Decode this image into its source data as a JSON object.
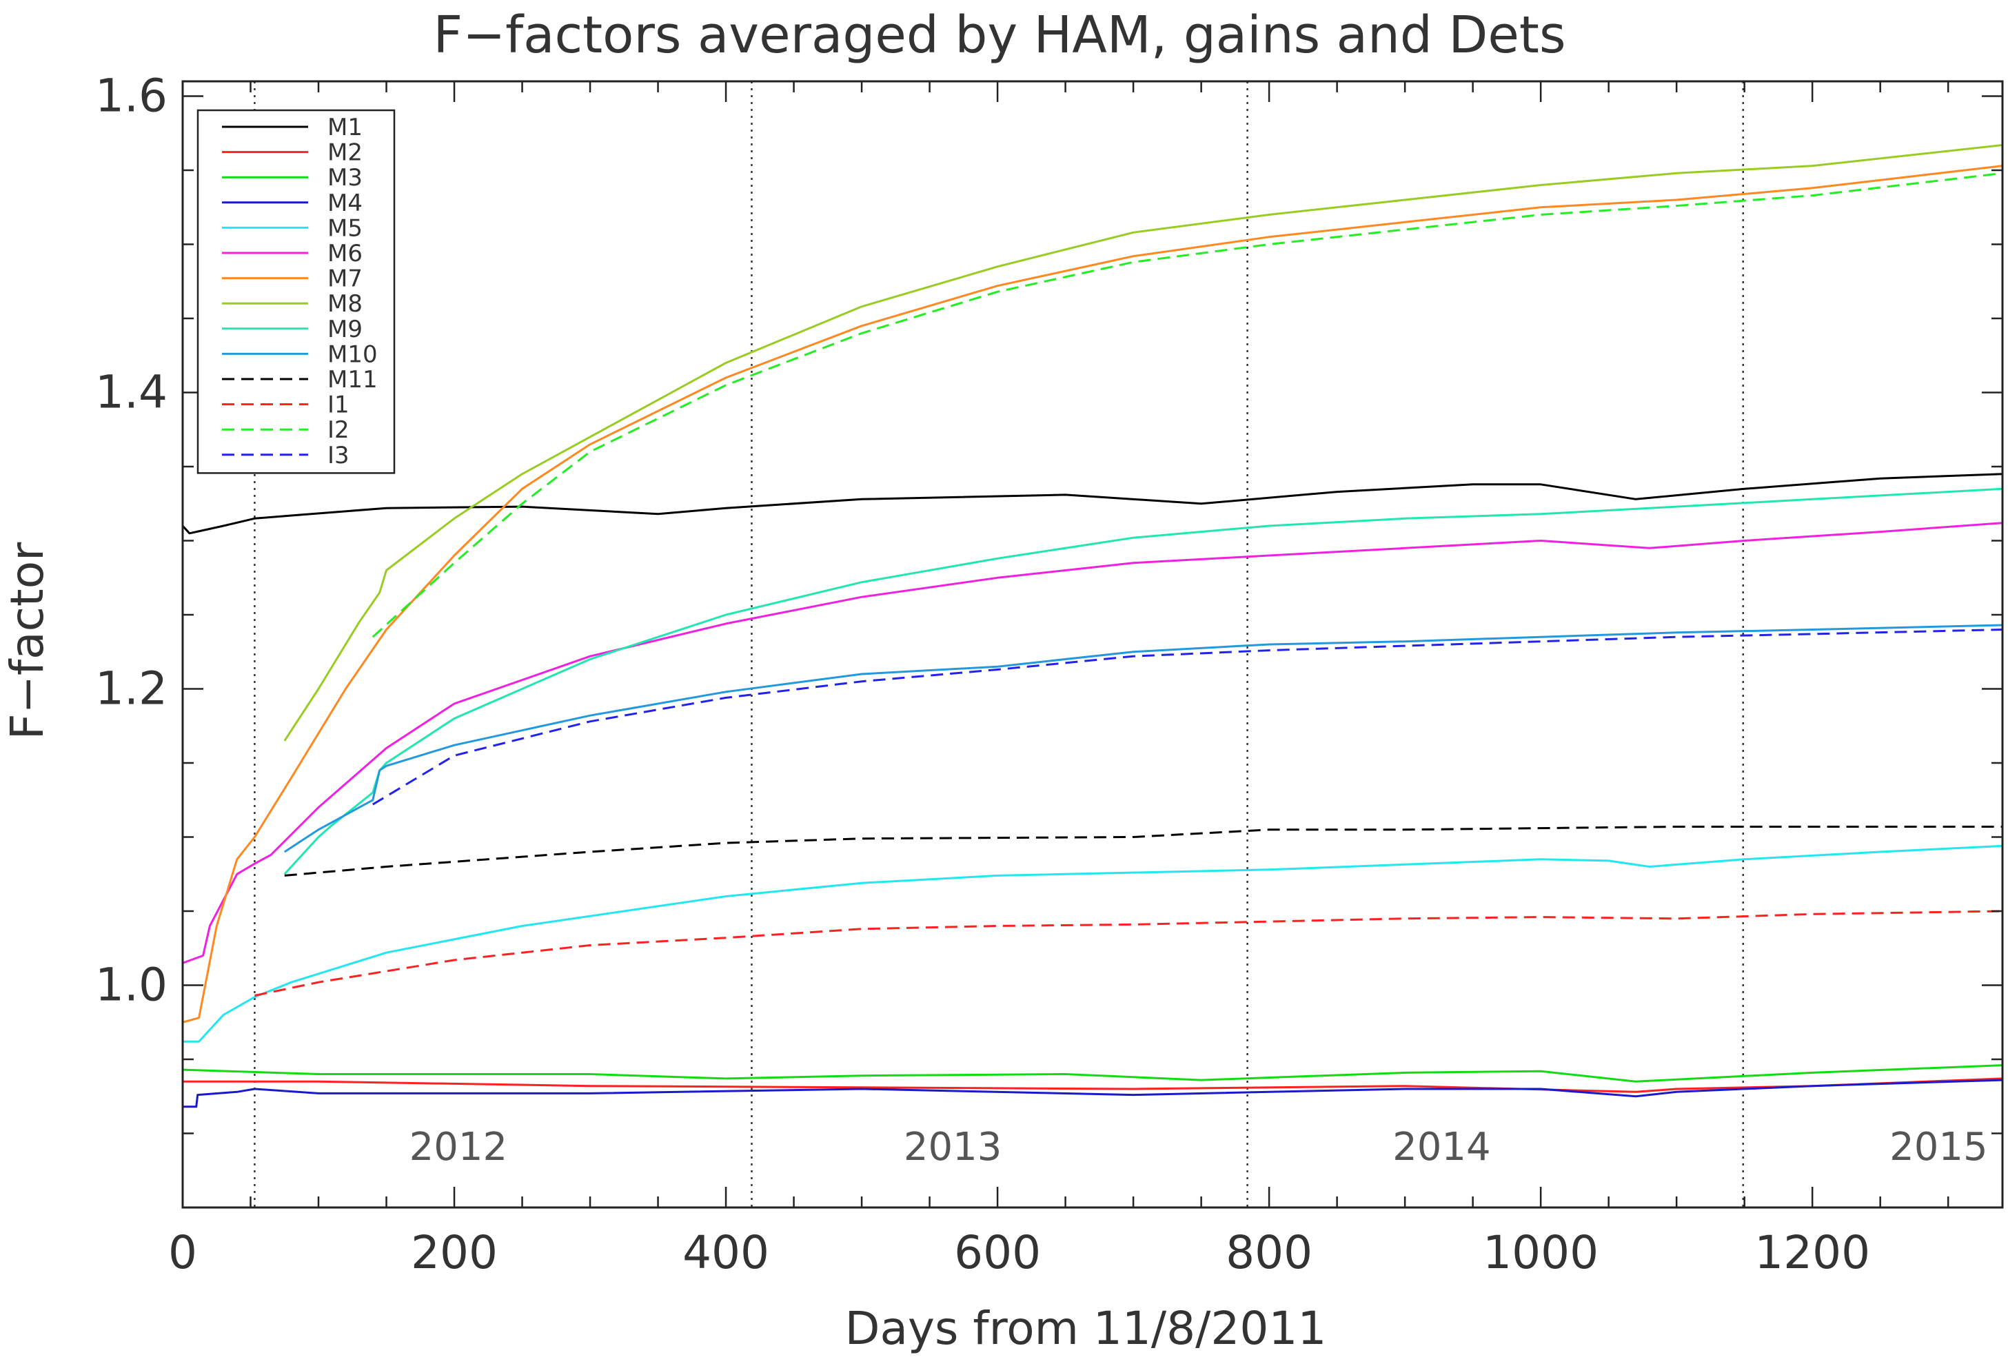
{
  "chart_data": {
    "type": "line",
    "title": "F−factors averaged by HAM, gains and Dets",
    "xlabel": "Days from 11/8/2011",
    "ylabel": "F−factor",
    "xlim": [
      0,
      1340
    ],
    "ylim": [
      0.85,
      1.61
    ],
    "xticks": [
      0,
      200,
      400,
      600,
      800,
      1000,
      1200
    ],
    "xtick_labels": [
      "0",
      "200",
      "400",
      "600",
      "800",
      "1000",
      "1200"
    ],
    "yticks": [
      1.0,
      1.2,
      1.4,
      1.6
    ],
    "ytick_labels": [
      "1.0",
      "1.2",
      "1.4",
      "1.6"
    ],
    "grid": false,
    "legend": "top-left",
    "year_boundaries": [
      53,
      419,
      784,
      1149
    ],
    "year_labels": [
      {
        "text": "2012",
        "x": 203
      },
      {
        "text": "2013",
        "x": 567
      },
      {
        "text": "2014",
        "x": 927
      },
      {
        "text": "2015",
        "x": 1293
      }
    ],
    "year_label_y": 0.882,
    "series": [
      {
        "name": "M1",
        "color": "#000000",
        "dashed": false,
        "x": [
          0,
          5,
          15,
          30,
          53,
          80,
          150,
          250,
          350,
          400,
          500,
          650,
          750,
          850,
          950,
          1000,
          1070,
          1150,
          1250,
          1340
        ],
        "y": [
          1.31,
          1.305,
          1.307,
          1.31,
          1.315,
          1.317,
          1.322,
          1.323,
          1.318,
          1.322,
          1.328,
          1.331,
          1.325,
          1.333,
          1.338,
          1.338,
          1.328,
          1.335,
          1.342,
          1.345
        ]
      },
      {
        "name": "M2",
        "color": "#ff2020",
        "dashed": false,
        "x": [
          0,
          100,
          300,
          500,
          700,
          900,
          1070,
          1100,
          1200,
          1340
        ],
        "y": [
          0.935,
          0.935,
          0.932,
          0.931,
          0.93,
          0.932,
          0.928,
          0.93,
          0.932,
          0.937
        ]
      },
      {
        "name": "M3",
        "color": "#10dd10",
        "dashed": false,
        "x": [
          0,
          100,
          300,
          400,
          500,
          650,
          750,
          900,
          1000,
          1070,
          1200,
          1340
        ],
        "y": [
          0.943,
          0.94,
          0.94,
          0.937,
          0.939,
          0.94,
          0.936,
          0.941,
          0.942,
          0.935,
          0.941,
          0.946
        ]
      },
      {
        "name": "M4",
        "color": "#1a1acc",
        "dashed": false,
        "x": [
          0,
          10,
          11,
          40,
          53,
          100,
          300,
          500,
          700,
          900,
          1000,
          1070,
          1100,
          1200,
          1340
        ],
        "y": [
          0.918,
          0.918,
          0.926,
          0.928,
          0.93,
          0.927,
          0.927,
          0.93,
          0.926,
          0.93,
          0.93,
          0.925,
          0.928,
          0.932,
          0.936
        ]
      },
      {
        "name": "M5",
        "color": "#22e6f0",
        "dashed": false,
        "x": [
          0,
          12,
          30,
          53,
          80,
          150,
          250,
          400,
          500,
          600,
          800,
          1000,
          1050,
          1080,
          1150,
          1250,
          1340
        ],
        "y": [
          0.962,
          0.962,
          0.98,
          0.992,
          1.002,
          1.022,
          1.04,
          1.06,
          1.069,
          1.074,
          1.078,
          1.085,
          1.084,
          1.08,
          1.085,
          1.09,
          1.094
        ]
      },
      {
        "name": "M6",
        "color": "#f020e0",
        "dashed": false,
        "x": [
          0,
          15,
          20,
          40,
          53,
          65,
          100,
          150,
          200,
          300,
          400,
          500,
          600,
          700,
          800,
          900,
          1000,
          1080,
          1150,
          1250,
          1340
        ],
        "y": [
          1.015,
          1.02,
          1.04,
          1.075,
          1.082,
          1.088,
          1.12,
          1.16,
          1.19,
          1.222,
          1.244,
          1.262,
          1.275,
          1.285,
          1.29,
          1.295,
          1.3,
          1.295,
          1.3,
          1.306,
          1.312
        ]
      },
      {
        "name": "M7",
        "color": "#ff8820",
        "dashed": false,
        "x": [
          0,
          12,
          25,
          40,
          53,
          80,
          120,
          150,
          200,
          250,
          300,
          400,
          500,
          600,
          700,
          800,
          900,
          1000,
          1100,
          1200,
          1340
        ],
        "y": [
          0.975,
          0.978,
          1.04,
          1.085,
          1.1,
          1.14,
          1.2,
          1.24,
          1.29,
          1.335,
          1.365,
          1.41,
          1.445,
          1.472,
          1.492,
          1.505,
          1.515,
          1.525,
          1.53,
          1.538,
          1.553
        ]
      },
      {
        "name": "M8",
        "color": "#99cc22",
        "dashed": false,
        "x": [
          75,
          100,
          130,
          145,
          150,
          200,
          250,
          300,
          400,
          500,
          600,
          700,
          800,
          900,
          1000,
          1100,
          1200,
          1340
        ],
        "y": [
          1.165,
          1.2,
          1.245,
          1.265,
          1.28,
          1.315,
          1.345,
          1.37,
          1.42,
          1.458,
          1.485,
          1.508,
          1.52,
          1.53,
          1.54,
          1.548,
          1.553,
          1.567
        ]
      },
      {
        "name": "M9",
        "color": "#20e6b0",
        "dashed": false,
        "x": [
          75,
          100,
          110,
          140,
          145,
          150,
          200,
          300,
          400,
          500,
          600,
          700,
          800,
          900,
          1000,
          1100,
          1200,
          1340
        ],
        "y": [
          1.075,
          1.1,
          1.108,
          1.13,
          1.145,
          1.15,
          1.18,
          1.22,
          1.25,
          1.272,
          1.288,
          1.302,
          1.31,
          1.315,
          1.318,
          1.323,
          1.328,
          1.335
        ]
      },
      {
        "name": "M10",
        "color": "#2299dd",
        "dashed": false,
        "x": [
          75,
          100,
          140,
          145,
          150,
          200,
          300,
          400,
          500,
          600,
          700,
          800,
          900,
          1000,
          1100,
          1200,
          1340
        ],
        "y": [
          1.09,
          1.105,
          1.125,
          1.145,
          1.148,
          1.162,
          1.182,
          1.198,
          1.21,
          1.215,
          1.225,
          1.23,
          1.232,
          1.235,
          1.238,
          1.24,
          1.243
        ]
      },
      {
        "name": "M11",
        "color": "#000000",
        "dashed": true,
        "x": [
          75,
          150,
          300,
          400,
          500,
          700,
          800,
          900,
          1000,
          1100,
          1200,
          1340
        ],
        "y": [
          1.074,
          1.08,
          1.09,
          1.096,
          1.099,
          1.1,
          1.105,
          1.105,
          1.106,
          1.107,
          1.107,
          1.107
        ]
      },
      {
        "name": "I1",
        "color": "#ff2020",
        "dashed": true,
        "x": [
          53,
          100,
          200,
          300,
          400,
          500,
          600,
          700,
          800,
          900,
          1000,
          1100,
          1200,
          1340
        ],
        "y": [
          0.993,
          1.002,
          1.017,
          1.027,
          1.032,
          1.038,
          1.04,
          1.041,
          1.043,
          1.045,
          1.046,
          1.045,
          1.048,
          1.05
        ]
      },
      {
        "name": "I2",
        "color": "#22ee22",
        "dashed": true,
        "x": [
          140,
          200,
          250,
          300,
          400,
          500,
          600,
          700,
          800,
          900,
          1000,
          1100,
          1200,
          1340
        ],
        "y": [
          1.235,
          1.285,
          1.325,
          1.36,
          1.405,
          1.44,
          1.468,
          1.488,
          1.5,
          1.51,
          1.52,
          1.526,
          1.533,
          1.548
        ]
      },
      {
        "name": "I3",
        "color": "#2222ee",
        "dashed": true,
        "x": [
          140,
          200,
          300,
          400,
          500,
          600,
          700,
          800,
          900,
          1000,
          1100,
          1200,
          1340
        ],
        "y": [
          1.122,
          1.155,
          1.178,
          1.194,
          1.205,
          1.213,
          1.222,
          1.226,
          1.229,
          1.232,
          1.235,
          1.237,
          1.24
        ]
      }
    ]
  }
}
